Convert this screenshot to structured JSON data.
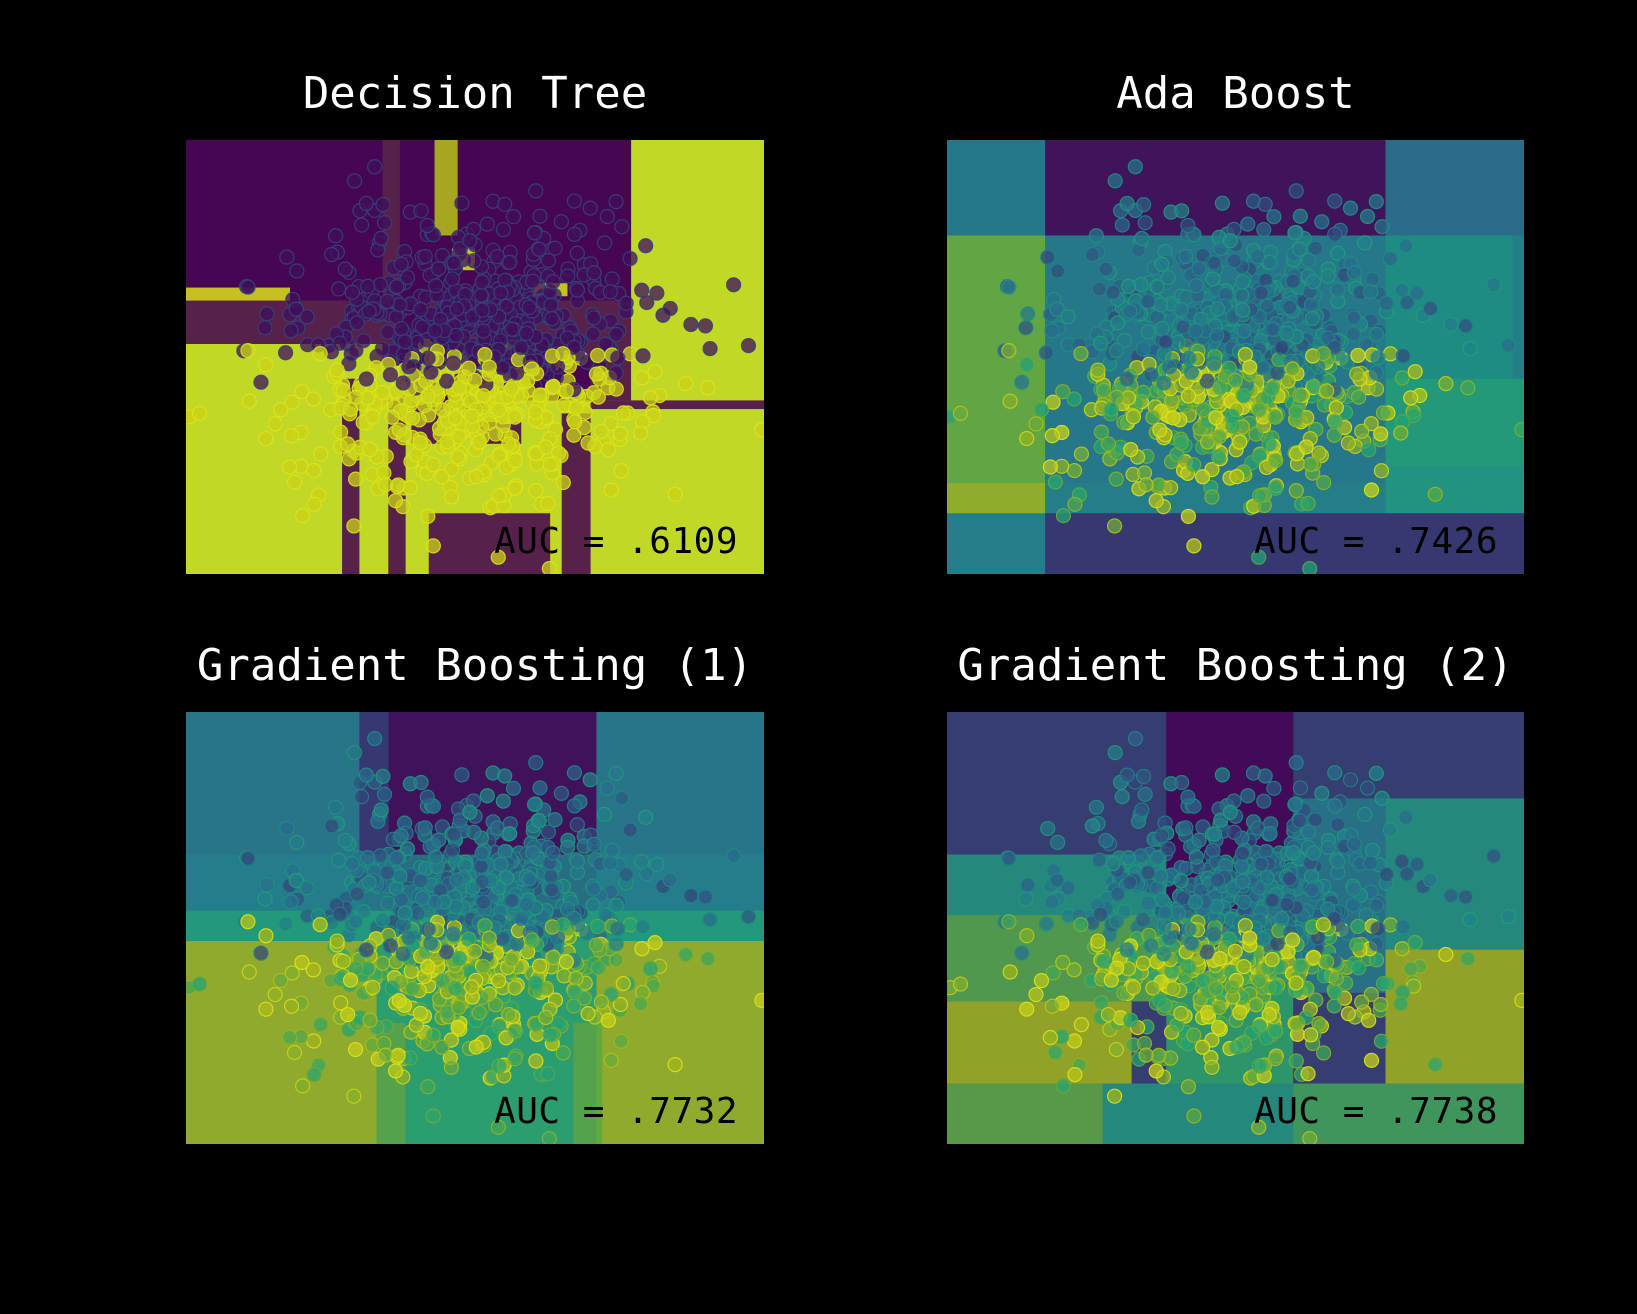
{
  "chart_data": [
    {
      "type": "heatmap",
      "title": "Decision Tree",
      "annotation": "AUC = .6109",
      "scatter": true,
      "grid": false
    },
    {
      "type": "heatmap",
      "title": "Ada Boost",
      "annotation": "AUC = .7426",
      "scatter": true,
      "grid": false
    },
    {
      "type": "heatmap",
      "title": "Gradient Boosting (1)",
      "annotation": "AUC = .7732",
      "scatter": true,
      "grid": false
    },
    {
      "type": "heatmap",
      "title": "Gradient Boosting (2)",
      "annotation": "AUC = .7738",
      "scatter": true,
      "grid": false
    }
  ],
  "colors": {
    "background": "#000000",
    "title": "#ffffff",
    "auc_text": "#000000",
    "viridis": [
      "#440154",
      "#3b2a6b",
      "#2a6b8c",
      "#1f8a87",
      "#22a374",
      "#5aa843",
      "#a6b51a",
      "#dde318"
    ]
  }
}
